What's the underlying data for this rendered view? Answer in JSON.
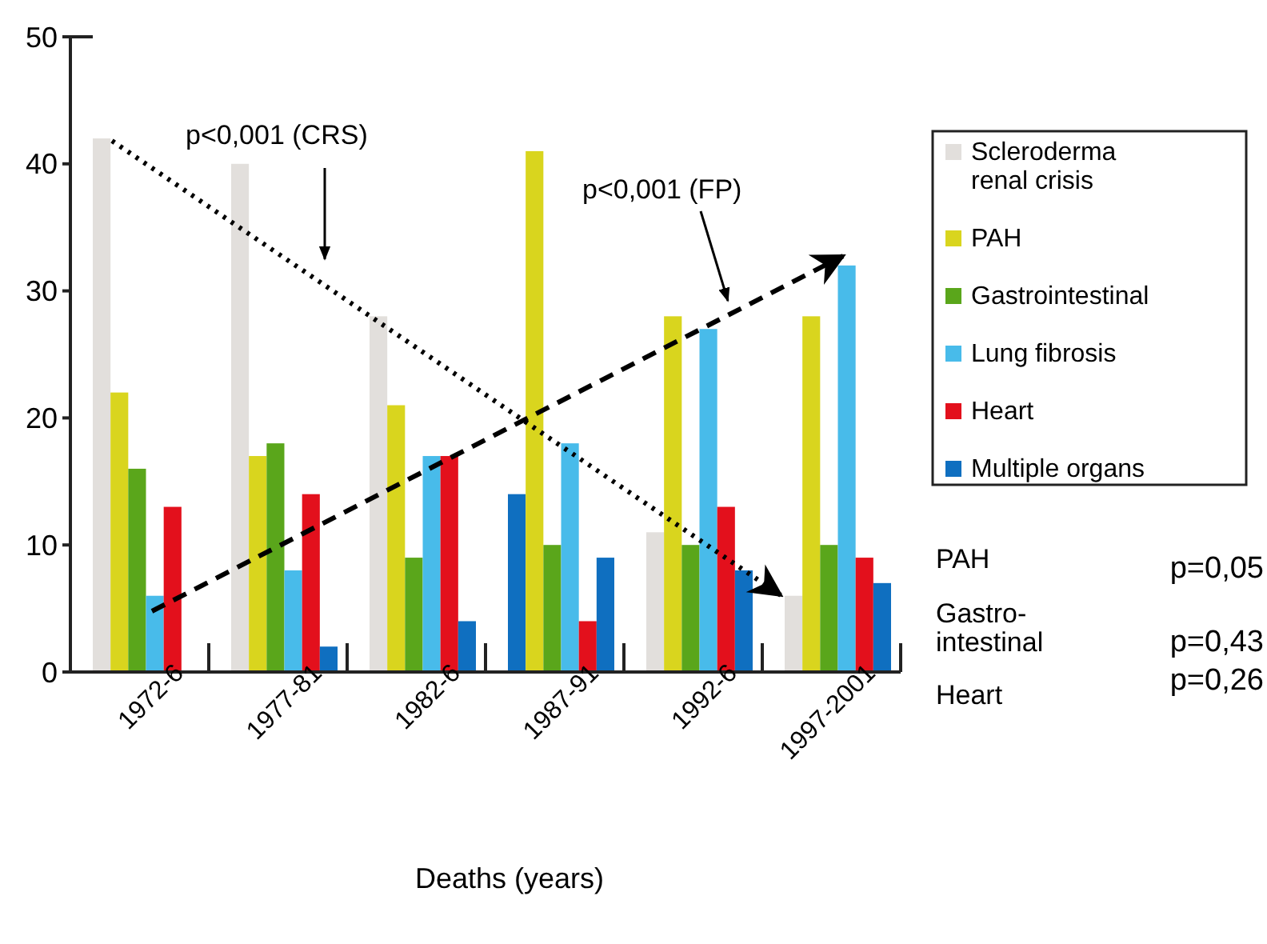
{
  "chart_data": {
    "type": "bar",
    "xlabel": "Deaths (years)",
    "categories": [
      "1972-6",
      "1977-81",
      "1982-6",
      "1987-91",
      "1992-6",
      "1997-2001"
    ],
    "series": [
      {
        "name": "Scleroderma renal crisis",
        "color": "#e2dfdc",
        "colors": [
          "#e2dfdc",
          "#e2dfdc",
          "#e2dfdc",
          "#0f6fc0",
          "#e2dfdc",
          "#e2dfdc"
        ],
        "values": [
          42,
          40,
          28,
          14,
          11,
          6
        ]
      },
      {
        "name": "PAH",
        "color": "#d9d51e",
        "values": [
          22,
          17,
          21,
          41,
          28,
          28
        ]
      },
      {
        "name": "Gastrointestinal",
        "color": "#5aa61b",
        "values": [
          16,
          18,
          9,
          10,
          10,
          10
        ]
      },
      {
        "name": "Lung fibrosis",
        "color": "#48bbea",
        "values": [
          6,
          8,
          17,
          18,
          27,
          32
        ]
      },
      {
        "name": "Heart",
        "color": "#e3101c",
        "values": [
          13,
          14,
          17,
          4,
          13,
          9
        ]
      },
      {
        "name": "Multiple organs",
        "color": "#0f6fc0",
        "values": [
          null,
          2,
          4,
          9,
          8,
          7
        ]
      }
    ],
    "ylim": [
      0,
      50
    ],
    "yticks": [
      0,
      10,
      20,
      30,
      40,
      50
    ],
    "grid": false,
    "legend": "right",
    "annotations": [
      "p<0,001 (CRS)",
      "p<0,001 (FP)",
      "PAH",
      "p=0,05",
      "Gastro-\nintestinal",
      "p=0,43",
      "Heart",
      "p=0,26"
    ]
  }
}
